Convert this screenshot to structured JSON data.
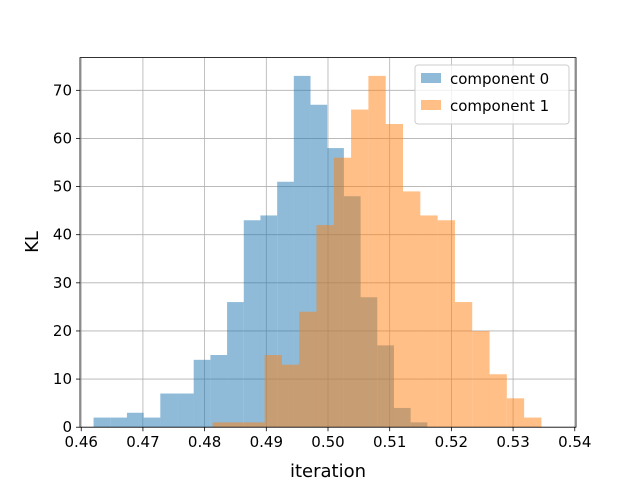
{
  "chart_data": {
    "type": "histogram",
    "title": "",
    "xlabel": "iteration",
    "ylabel": "KL",
    "xlim": [
      0.4598,
      0.5402
    ],
    "ylim": [
      0,
      76.8
    ],
    "xticks": [
      0.46,
      0.47,
      0.48,
      0.49,
      0.5,
      0.51,
      0.52,
      0.53,
      0.54
    ],
    "xtick_labels": [
      "0.46",
      "0.47",
      "0.48",
      "0.49",
      "0.50",
      "0.51",
      "0.52",
      "0.53",
      "0.54"
    ],
    "yticks": [
      0,
      10,
      20,
      30,
      40,
      50,
      60,
      70
    ],
    "ytick_labels": [
      "0",
      "10",
      "20",
      "30",
      "40",
      "50",
      "60",
      "70"
    ],
    "grid": true,
    "legend_position": "top-right",
    "series": [
      {
        "name": "component 0",
        "color": "#1f77b4",
        "opacity": 0.5,
        "bin_width": 0.002705,
        "bin_starts": [
          0.462,
          0.46471,
          0.46741,
          0.47012,
          0.47282,
          0.47553,
          0.47823,
          0.48094,
          0.48364,
          0.48635,
          0.48905,
          0.49176,
          0.49446,
          0.49717,
          0.49987,
          0.50258,
          0.50528,
          0.50799,
          0.51069,
          0.5134
        ],
        "values": [
          2,
          2,
          3,
          2,
          7,
          7,
          14,
          15,
          26,
          43,
          44,
          51,
          73,
          67,
          58,
          48,
          27,
          17,
          4,
          1
        ]
      },
      {
        "name": "component 1",
        "color": "#ff7f0e",
        "opacity": 0.5,
        "bin_width": 0.002805,
        "bin_starts": [
          0.4813,
          0.48411,
          0.48691,
          0.48972,
          0.49252,
          0.49533,
          0.49813,
          0.50094,
          0.50374,
          0.50655,
          0.50935,
          0.51216,
          0.51496,
          0.51777,
          0.52057,
          0.52338,
          0.52618,
          0.52899,
          0.53179
        ],
        "values": [
          1,
          1,
          1,
          15,
          13,
          24,
          42,
          56,
          66,
          73,
          63,
          49,
          44,
          43,
          26,
          20,
          11,
          6,
          2
        ]
      }
    ]
  }
}
